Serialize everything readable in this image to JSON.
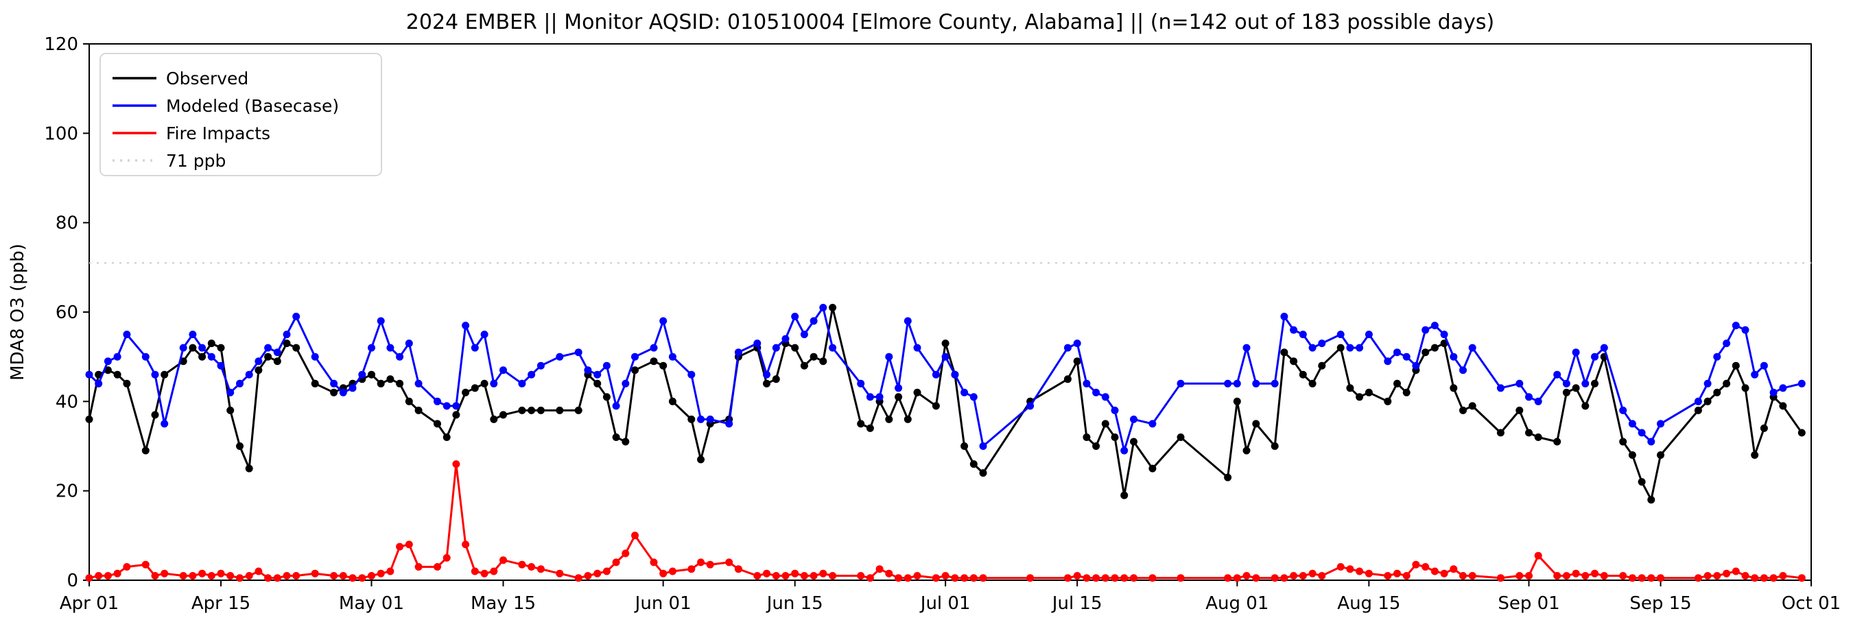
{
  "title": "2024 EMBER || Monitor AQSID: 010510004 [Elmore County, Alabama] || (n=142 out of 183 possible days)",
  "chart_data": {
    "type": "line",
    "title": "2024 EMBER || Monitor AQSID: 010510004 [Elmore County, Alabama] || (n=142 out of 183 possible days)",
    "xlabel": "",
    "ylabel": "MDA8 O3 (ppb)",
    "ylim": [
      0,
      120
    ],
    "yticks": [
      0,
      20,
      40,
      60,
      80,
      100,
      120
    ],
    "x_start": "2024-04-01",
    "x_end": "2024-10-01",
    "grid": false,
    "legend_position": "upper left",
    "xticks": [
      {
        "label": "Apr 01",
        "date": "2024-04-01"
      },
      {
        "label": "Apr 15",
        "date": "2024-04-15"
      },
      {
        "label": "May 01",
        "date": "2024-05-01"
      },
      {
        "label": "May 15",
        "date": "2024-05-15"
      },
      {
        "label": "Jun 01",
        "date": "2024-06-01"
      },
      {
        "label": "Jun 15",
        "date": "2024-06-15"
      },
      {
        "label": "Jul 01",
        "date": "2024-07-01"
      },
      {
        "label": "Jul 15",
        "date": "2024-07-15"
      },
      {
        "label": "Aug 01",
        "date": "2024-08-01"
      },
      {
        "label": "Aug 15",
        "date": "2024-08-15"
      },
      {
        "label": "Sep 01",
        "date": "2024-09-01"
      },
      {
        "label": "Sep 15",
        "date": "2024-09-15"
      },
      {
        "label": "Oct 01",
        "date": "2024-10-01"
      }
    ],
    "threshold": {
      "label": "71 ppb",
      "value": 71,
      "color": "#d3d3d3",
      "style": "dotted"
    },
    "legend_items": [
      {
        "label": "Observed",
        "color": "#000000",
        "dash": "none"
      },
      {
        "label": "Modeled (Basecase)",
        "color": "#0000ff",
        "dash": "none"
      },
      {
        "label": "Fire Impacts",
        "color": "#ff0000",
        "dash": "none"
      },
      {
        "label": "71 ppb",
        "color": "#d3d3d3",
        "dash": "dotted"
      }
    ],
    "dates": [
      "2024-04-01",
      "2024-04-02",
      "2024-04-03",
      "2024-04-04",
      "2024-04-05",
      "2024-04-07",
      "2024-04-08",
      "2024-04-09",
      "2024-04-11",
      "2024-04-12",
      "2024-04-13",
      "2024-04-14",
      "2024-04-15",
      "2024-04-16",
      "2024-04-17",
      "2024-04-18",
      "2024-04-19",
      "2024-04-20",
      "2024-04-21",
      "2024-04-22",
      "2024-04-23",
      "2024-04-25",
      "2024-04-27",
      "2024-04-28",
      "2024-04-29",
      "2024-04-30",
      "2024-05-01",
      "2024-05-02",
      "2024-05-03",
      "2024-05-04",
      "2024-05-05",
      "2024-05-06",
      "2024-05-08",
      "2024-05-09",
      "2024-05-10",
      "2024-05-11",
      "2024-05-12",
      "2024-05-13",
      "2024-05-14",
      "2024-05-15",
      "2024-05-17",
      "2024-05-18",
      "2024-05-19",
      "2024-05-21",
      "2024-05-23",
      "2024-05-24",
      "2024-05-25",
      "2024-05-26",
      "2024-05-27",
      "2024-05-28",
      "2024-05-29",
      "2024-05-31",
      "2024-06-01",
      "2024-06-02",
      "2024-06-04",
      "2024-06-05",
      "2024-06-06",
      "2024-06-08",
      "2024-06-09",
      "2024-06-11",
      "2024-06-12",
      "2024-06-13",
      "2024-06-14",
      "2024-06-15",
      "2024-06-16",
      "2024-06-17",
      "2024-06-18",
      "2024-06-19",
      "2024-06-22",
      "2024-06-23",
      "2024-06-24",
      "2024-06-25",
      "2024-06-26",
      "2024-06-27",
      "2024-06-28",
      "2024-06-30",
      "2024-07-01",
      "2024-07-02",
      "2024-07-03",
      "2024-07-04",
      "2024-07-05",
      "2024-07-10",
      "2024-07-14",
      "2024-07-15",
      "2024-07-16",
      "2024-07-17",
      "2024-07-18",
      "2024-07-19",
      "2024-07-20",
      "2024-07-21",
      "2024-07-23",
      "2024-07-26",
      "2024-07-31",
      "2024-08-01",
      "2024-08-02",
      "2024-08-03",
      "2024-08-05",
      "2024-08-06",
      "2024-08-07",
      "2024-08-08",
      "2024-08-09",
      "2024-08-10",
      "2024-08-12",
      "2024-08-13",
      "2024-08-14",
      "2024-08-15",
      "2024-08-17",
      "2024-08-18",
      "2024-08-19",
      "2024-08-20",
      "2024-08-21",
      "2024-08-22",
      "2024-08-23",
      "2024-08-24",
      "2024-08-25",
      "2024-08-26",
      "2024-08-29",
      "2024-08-31",
      "2024-09-01",
      "2024-09-02",
      "2024-09-04",
      "2024-09-05",
      "2024-09-06",
      "2024-09-07",
      "2024-09-08",
      "2024-09-09",
      "2024-09-11",
      "2024-09-12",
      "2024-09-13",
      "2024-09-14",
      "2024-09-15",
      "2024-09-19",
      "2024-09-20",
      "2024-09-21",
      "2024-09-22",
      "2024-09-23",
      "2024-09-24",
      "2024-09-25",
      "2024-09-26",
      "2024-09-27",
      "2024-09-28",
      "2024-09-30"
    ],
    "series": [
      {
        "name": "Observed",
        "color": "#000000",
        "values": [
          36,
          46,
          47,
          46,
          44,
          29,
          37,
          46,
          49,
          52,
          50,
          53,
          52,
          38,
          30,
          25,
          47,
          50,
          49,
          53,
          52,
          44,
          42,
          43,
          44,
          45,
          46,
          44,
          45,
          44,
          40,
          38,
          35,
          32,
          37,
          42,
          43,
          44,
          36,
          37,
          38,
          38,
          38,
          38,
          38,
          46,
          44,
          41,
          32,
          31,
          47,
          49,
          48,
          40,
          36,
          27,
          35,
          36,
          50,
          52,
          44,
          45,
          53,
          52,
          48,
          50,
          49,
          61,
          35,
          34,
          40,
          36,
          41,
          36,
          42,
          39,
          53,
          46,
          30,
          26,
          24,
          40,
          45,
          49,
          32,
          30,
          35,
          32,
          19,
          31,
          25,
          32,
          23,
          40,
          29,
          35,
          30,
          51,
          49,
          46,
          44,
          48,
          52,
          43,
          41,
          42,
          40,
          44,
          42,
          47,
          51,
          52,
          53,
          43,
          38,
          39,
          33,
          38,
          33,
          32,
          31,
          42,
          43,
          39,
          44,
          50,
          31,
          28,
          22,
          18,
          28,
          38,
          40,
          42,
          44,
          48,
          43,
          28,
          34,
          41,
          39,
          33
        ]
      },
      {
        "name": "Modeled (Basecase)",
        "color": "#0000ff",
        "values": [
          46,
          44,
          49,
          50,
          55,
          50,
          46,
          35,
          52,
          55,
          52,
          50,
          48,
          42,
          44,
          46,
          49,
          52,
          51,
          55,
          59,
          50,
          44,
          42,
          43,
          46,
          52,
          58,
          52,
          50,
          53,
          44,
          40,
          39,
          39,
          57,
          52,
          55,
          44,
          47,
          44,
          46,
          48,
          50,
          51,
          47,
          46,
          48,
          39,
          44,
          50,
          52,
          58,
          50,
          46,
          36,
          36,
          35,
          51,
          53,
          46,
          52,
          54,
          59,
          55,
          58,
          61,
          52,
          44,
          41,
          41,
          50,
          43,
          58,
          52,
          46,
          50,
          46,
          42,
          41,
          30,
          39,
          52,
          53,
          44,
          42,
          41,
          38,
          29,
          36,
          35,
          44,
          44,
          44,
          52,
          44,
          44,
          59,
          56,
          55,
          52,
          53,
          55,
          52,
          52,
          55,
          49,
          51,
          50,
          48,
          56,
          57,
          55,
          50,
          47,
          52,
          43,
          44,
          41,
          40,
          46,
          44,
          51,
          44,
          50,
          52,
          38,
          35,
          33,
          31,
          35,
          40,
          44,
          50,
          53,
          57,
          56,
          46,
          48,
          42,
          43,
          44
        ]
      },
      {
        "name": "Fire Impacts",
        "color": "#ff0000",
        "values": [
          0.5,
          1,
          1,
          1.5,
          3,
          3.5,
          1,
          1.5,
          1,
          1,
          1.5,
          1,
          1.5,
          1,
          0.5,
          1,
          2,
          0.5,
          0.5,
          1,
          1,
          1.5,
          1,
          1,
          0.5,
          0.5,
          1,
          1.5,
          2,
          7.5,
          8,
          3,
          3,
          5,
          26,
          8,
          2,
          1.5,
          2,
          4.5,
          3.5,
          3,
          2.5,
          1.5,
          0.5,
          1,
          1.5,
          2,
          4,
          6,
          10,
          4,
          1.5,
          2,
          2.5,
          4,
          3.5,
          4,
          2.5,
          1,
          1.5,
          1,
          1,
          1.5,
          1,
          1,
          1.5,
          1,
          1,
          0.5,
          2.5,
          1.5,
          0.5,
          0.5,
          1,
          0.5,
          1,
          0.5,
          0.5,
          0.5,
          0.5,
          0.5,
          0.5,
          1,
          0.5,
          0.5,
          0.5,
          0.5,
          0.5,
          0.5,
          0.5,
          0.5,
          0.5,
          0.5,
          1,
          0.5,
          0.5,
          0.5,
          1,
          1,
          1.5,
          1,
          3,
          2.5,
          2,
          1.5,
          1,
          1.5,
          1,
          3.5,
          3,
          2,
          1.5,
          2.5,
          1,
          1,
          0.5,
          1,
          1,
          5.5,
          1,
          1,
          1.5,
          1,
          1.5,
          1,
          1,
          0.5,
          0.5,
          0.5,
          0.5,
          0.5,
          1,
          1,
          1.5,
          2,
          1,
          0.5,
          0.5,
          0.5,
          1,
          0.5
        ]
      }
    ]
  }
}
